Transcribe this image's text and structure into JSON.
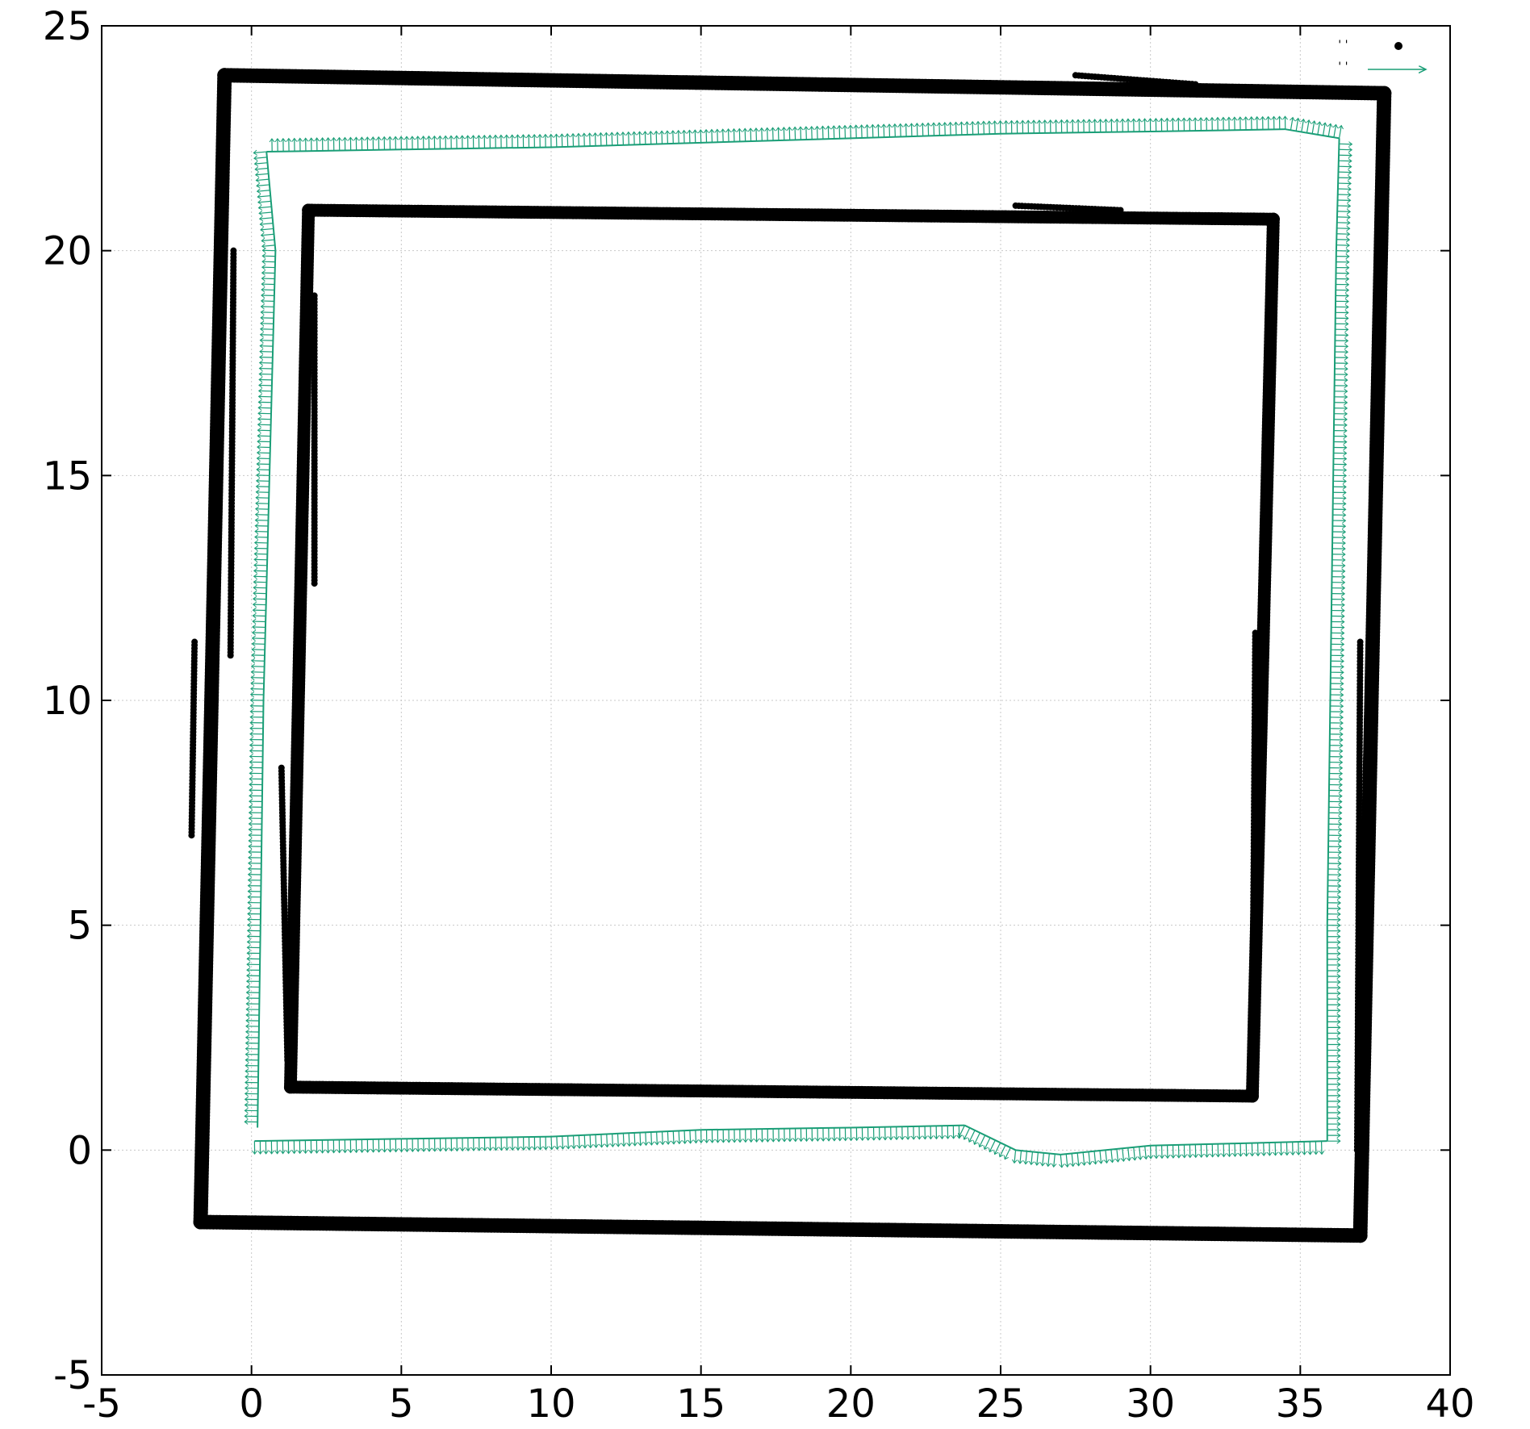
{
  "chart_data": {
    "type": "scatter",
    "title": "",
    "xlabel": "",
    "ylabel": "",
    "xlim": [
      -5,
      40
    ],
    "ylim": [
      -5,
      25
    ],
    "xticks": [
      "-5",
      "0",
      "5",
      "10",
      "15",
      "20",
      "25",
      "30",
      "35",
      "40"
    ],
    "yticks": [
      "-5",
      "0",
      "5",
      "10",
      "15",
      "20",
      "25"
    ],
    "grid": true,
    "legend_position": "top-right",
    "series": [
      {
        "legend_label": "''",
        "kind": "points",
        "color": "#000000",
        "outer_wall": [
          [
            -0.9,
            23.9
          ],
          [
            37.8,
            23.5
          ],
          [
            37.0,
            -1.9
          ],
          [
            -1.7,
            -1.6
          ],
          [
            -0.9,
            23.9
          ]
        ],
        "inner_wall": [
          [
            1.9,
            20.9
          ],
          [
            34.1,
            20.7
          ],
          [
            33.4,
            1.2
          ],
          [
            1.3,
            1.4
          ],
          [
            1.9,
            20.9
          ]
        ],
        "stray_segments": [
          [
            [
              -0.6,
              20.0
            ],
            [
              -0.7,
              11.0
            ]
          ],
          [
            [
              -1.9,
              11.3
            ],
            [
              -2.0,
              7.0
            ]
          ],
          [
            [
              2.1,
              19.0
            ],
            [
              2.1,
              12.6
            ]
          ],
          [
            [
              1.0,
              8.5
            ],
            [
              1.2,
              2.0
            ]
          ],
          [
            [
              33.5,
              11.5
            ],
            [
              33.4,
              2.0
            ]
          ],
          [
            [
              37.0,
              11.3
            ],
            [
              36.9,
              0.0
            ]
          ],
          [
            [
              27.5,
              23.9
            ],
            [
              31.5,
              23.7
            ]
          ],
          [
            [
              25.5,
              21.0
            ],
            [
              29.0,
              20.9
            ]
          ]
        ]
      },
      {
        "legend_label": "''",
        "kind": "vectors",
        "color": "#1a9e77",
        "path": [
          [
            0.1,
            0.2
          ],
          [
            5.0,
            0.25
          ],
          [
            10.0,
            0.3
          ],
          [
            15.0,
            0.45
          ],
          [
            20.0,
            0.5
          ],
          [
            23.8,
            0.55
          ],
          [
            25.5,
            0.0
          ],
          [
            27.0,
            -0.1
          ],
          [
            30.0,
            0.1
          ],
          [
            33.0,
            0.15
          ],
          [
            35.9,
            0.2
          ],
          [
            35.9,
            5.0
          ],
          [
            36.0,
            10.0
          ],
          [
            36.1,
            15.0
          ],
          [
            36.2,
            20.0
          ],
          [
            36.3,
            22.5
          ],
          [
            34.5,
            22.7
          ],
          [
            30.0,
            22.65
          ],
          [
            25.0,
            22.6
          ],
          [
            20.0,
            22.5
          ],
          [
            15.0,
            22.4
          ],
          [
            10.0,
            22.3
          ],
          [
            5.0,
            22.25
          ],
          [
            0.5,
            22.2
          ],
          [
            0.8,
            20.0
          ],
          [
            0.6,
            15.0
          ],
          [
            0.4,
            10.0
          ],
          [
            0.3,
            5.0
          ],
          [
            0.2,
            0.5
          ]
        ]
      }
    ]
  }
}
